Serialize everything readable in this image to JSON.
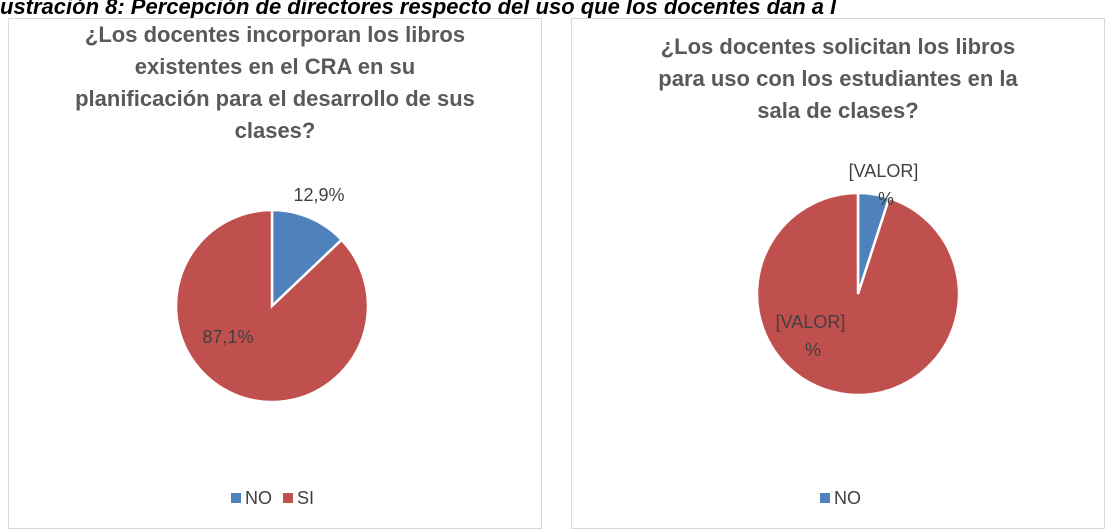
{
  "caption": "ustración 8: Percepción de directores respecto del uso que los docentes dan a l",
  "chart_data": [
    {
      "type": "pie",
      "title": "¿Los docentes incorporan los libros existentes en el CRA en su planificación para el desarrollo de sus clases?",
      "categories": [
        "NO",
        "SI"
      ],
      "values": [
        12.9,
        87.1
      ],
      "value_labels": [
        "12,9%",
        "87,1%"
      ],
      "colors": [
        "#4f81bd",
        "#c0504d"
      ],
      "legend": "bottom"
    },
    {
      "type": "pie",
      "title": "¿Los docentes solicitan los libros para uso con los estudiantes en la sala de clases?",
      "categories": [
        "NO",
        null
      ],
      "values": [
        5,
        95
      ],
      "value_labels": [
        "[VALOR] %",
        "[VALOR] %"
      ],
      "colors": [
        "#4f81bd",
        "#c0504d"
      ],
      "legend": "bottom"
    }
  ]
}
